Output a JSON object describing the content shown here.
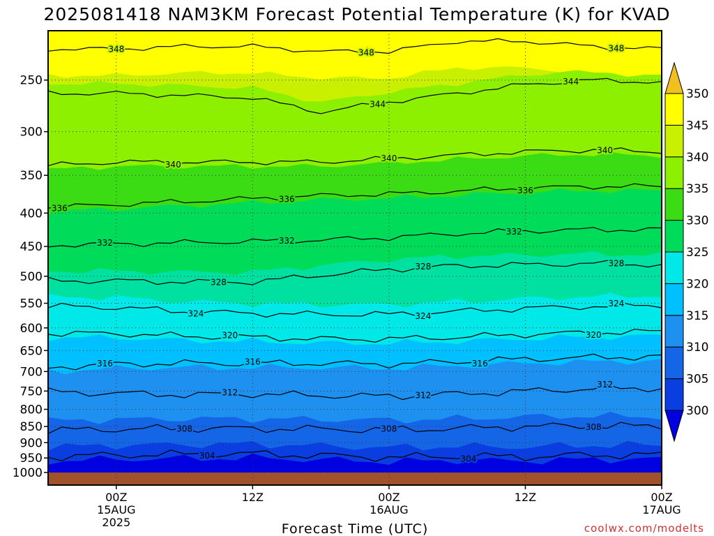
{
  "chart_data": {
    "type": "heatmap",
    "title": "2025081418 NAM3KM Forecast Potential Temperature (K) for KVAD",
    "xlabel": "Forecast Time (UTC)",
    "ylabel": "",
    "credit": "coolwx.com/modelts",
    "y_scale": "log-pressure (inverted)",
    "ylim": [
      1025,
      210
    ],
    "y_ticks": [
      250,
      300,
      350,
      400,
      450,
      500,
      550,
      600,
      650,
      700,
      750,
      800,
      850,
      900,
      950,
      1000
    ],
    "x_range_hours": [
      -6,
      48
    ],
    "x_ticks": [
      {
        "hour": 0,
        "lines": [
          "00Z",
          "15AUG",
          "2025"
        ]
      },
      {
        "hour": 12,
        "lines": [
          "12Z"
        ]
      },
      {
        "hour": 24,
        "lines": [
          "00Z",
          "16AUG"
        ]
      },
      {
        "hour": 36,
        "lines": [
          "12Z"
        ]
      },
      {
        "hour": 48,
        "lines": [
          "00Z",
          "17AUG"
        ]
      }
    ],
    "grid": true,
    "legend": "colorbar-right",
    "colorbar": {
      "levels": [
        300,
        305,
        310,
        315,
        320,
        325,
        330,
        335,
        340,
        345,
        350
      ],
      "colors": [
        "#0000e0",
        "#0a3ee0",
        "#1466e6",
        "#1e90f0",
        "#00c0ff",
        "#00e8e8",
        "#00e0a0",
        "#00dc5a",
        "#3cdc14",
        "#8cf000",
        "#c8f000",
        "#ffff00",
        "#f0c020"
      ],
      "extend": "both"
    },
    "contours": [
      {
        "level": 304,
        "label_hours": [
          8,
          31
        ],
        "pressure": [
          946,
          940,
          938,
          936,
          942,
          948,
          944,
          946,
          940,
          940
        ]
      },
      {
        "level": 308,
        "label_hours": [
          6,
          24,
          42
        ],
        "pressure": [
          862,
          858,
          856,
          856,
          858,
          860,
          856,
          850,
          848,
          850
        ]
      },
      {
        "level": 312,
        "label_hours": [
          10,
          27,
          43
        ],
        "pressure": [
          752,
          756,
          760,
          758,
          762,
          764,
          758,
          750,
          744,
          742
        ]
      },
      {
        "level": 316,
        "label_hours": [
          -1,
          12,
          32
        ],
        "pressure": [
          690,
          682,
          680,
          680,
          680,
          682,
          676,
          670,
          666,
          664
        ]
      },
      {
        "level": 320,
        "label_hours": [
          10,
          42
        ],
        "pressure": [
          612,
          612,
          618,
          620,
          624,
          624,
          620,
          614,
          610,
          608
        ]
      },
      {
        "level": 324,
        "label_hours": [
          7,
          27,
          44
        ],
        "pressure": [
          556,
          558,
          566,
          570,
          572,
          572,
          566,
          560,
          556,
          554
        ]
      },
      {
        "level": 328,
        "label_hours": [
          9,
          27,
          44
        ],
        "pressure": [
          508,
          508,
          510,
          510,
          498,
          488,
          482,
          480,
          478,
          480
        ]
      },
      {
        "level": 332,
        "label_hours": [
          -1,
          15,
          35
        ],
        "pressure": [
          448,
          446,
          444,
          442,
          440,
          436,
          430,
          426,
          424,
          424
        ]
      },
      {
        "level": 336,
        "label_hours": [
          -5,
          15,
          36
        ],
        "pressure": [
          392,
          388,
          384,
          380,
          376,
          374,
          370,
          366,
          364,
          364
        ]
      },
      {
        "level": 340,
        "label_hours": [
          5,
          24,
          43
        ],
        "pressure": [
          338,
          334,
          334,
          334,
          334,
          330,
          326,
          322,
          320,
          322
        ]
      },
      {
        "level": 344,
        "label_hours": [
          23,
          40
        ],
        "pressure": [
          262,
          262,
          264,
          266,
          280,
          270,
          262,
          254,
          250,
          252
        ]
      },
      {
        "level": 348,
        "label_hours": [
          0,
          22,
          44
        ],
        "pressure": [
          224,
          224,
          222,
          222,
          226,
          226,
          218,
          218,
          222,
          224
        ]
      }
    ]
  }
}
